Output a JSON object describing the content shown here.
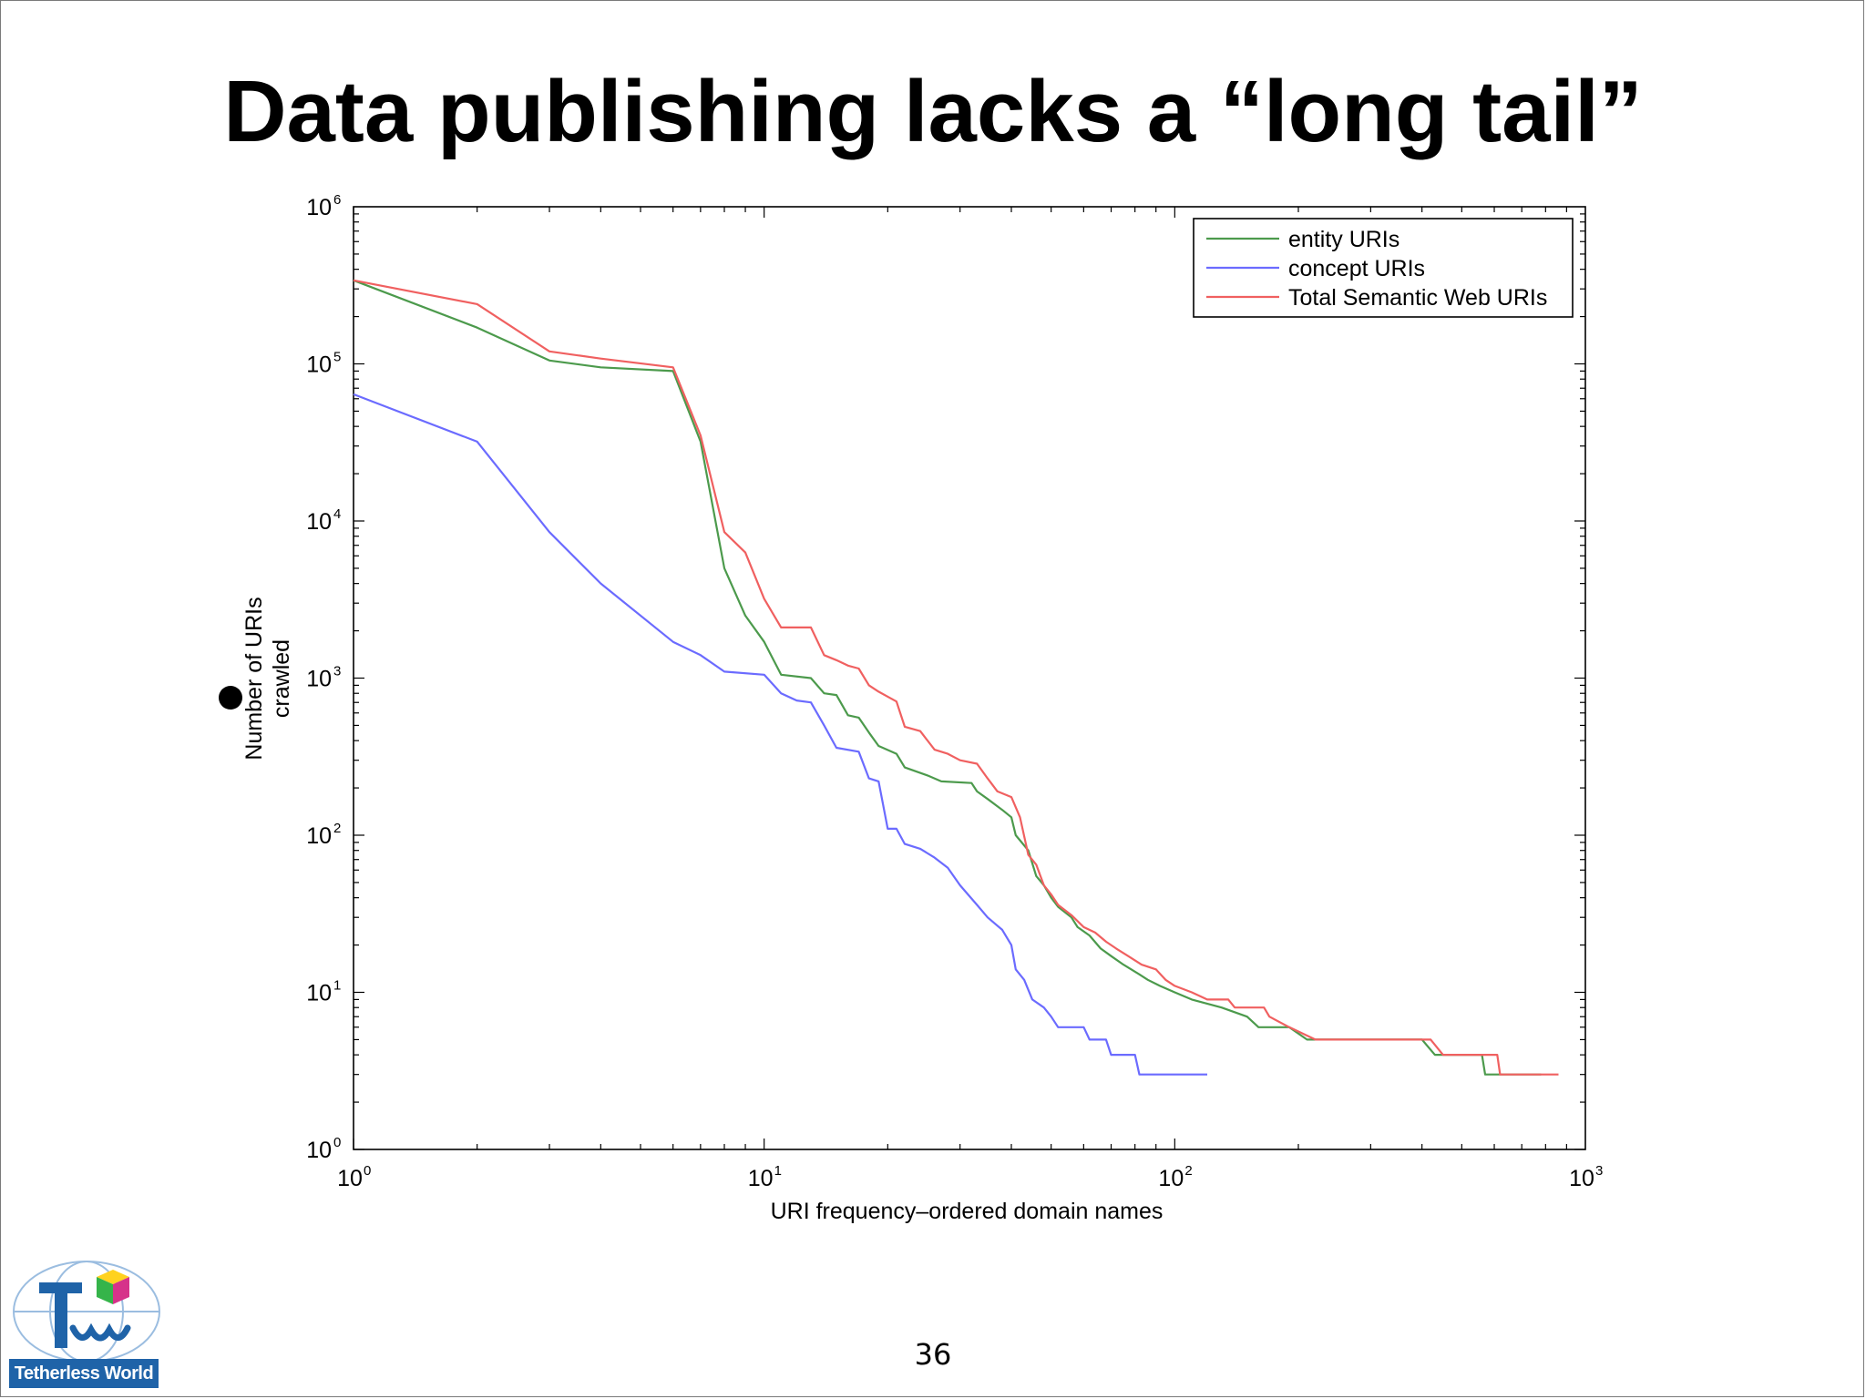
{
  "slide": {
    "title": "Data publishing lacks a “long tail”",
    "page_number": "36",
    "logo_text": "Tetherless World",
    "colors": {
      "logo_blue": "#1f63a8"
    }
  },
  "chart_data": {
    "type": "line",
    "xscale": "log",
    "yscale": "log",
    "xlim": [
      1,
      1000
    ],
    "ylim": [
      1,
      1000000
    ],
    "xlabel": "URI frequency–ordered domain names",
    "ylabel": "Number of URIs crawled",
    "ylabel_lines": [
      "Number of URIs",
      "crawled"
    ],
    "x_ticks": [
      {
        "value": 1,
        "base": "10",
        "exp": "0"
      },
      {
        "value": 10,
        "base": "10",
        "exp": "1"
      },
      {
        "value": 100,
        "base": "10",
        "exp": "2"
      },
      {
        "value": 1000,
        "base": "10",
        "exp": "3"
      }
    ],
    "y_ticks": [
      {
        "value": 1,
        "base": "10",
        "exp": "0"
      },
      {
        "value": 10,
        "base": "10",
        "exp": "1"
      },
      {
        "value": 100,
        "base": "10",
        "exp": "2"
      },
      {
        "value": 1000,
        "base": "10",
        "exp": "3"
      },
      {
        "value": 10000,
        "base": "10",
        "exp": "4"
      },
      {
        "value": 100000,
        "base": "10",
        "exp": "5"
      },
      {
        "value": 1000000,
        "base": "10",
        "exp": "6"
      }
    ],
    "grid": false,
    "legend_position": "top-right",
    "series": [
      {
        "name": "entity URIs",
        "color": "#4c9a4c",
        "points": [
          [
            1,
            340000
          ],
          [
            2,
            170000
          ],
          [
            3,
            105000
          ],
          [
            4,
            95000
          ],
          [
            6,
            90000
          ],
          [
            7,
            32000
          ],
          [
            8,
            5000
          ],
          [
            9,
            2500
          ],
          [
            10,
            1700
          ],
          [
            11,
            1050
          ],
          [
            13,
            1000
          ],
          [
            14,
            800
          ],
          [
            15,
            780
          ],
          [
            16,
            580
          ],
          [
            17,
            560
          ],
          [
            18,
            450
          ],
          [
            19,
            370
          ],
          [
            21,
            330
          ],
          [
            22,
            270
          ],
          [
            25,
            240
          ],
          [
            27,
            220
          ],
          [
            32,
            215
          ],
          [
            33,
            190
          ],
          [
            35,
            170
          ],
          [
            38,
            145
          ],
          [
            40,
            130
          ],
          [
            41,
            100
          ],
          [
            44,
            80
          ],
          [
            46,
            55
          ],
          [
            48,
            48
          ],
          [
            50,
            40
          ],
          [
            52,
            35
          ],
          [
            56,
            30
          ],
          [
            58,
            26
          ],
          [
            62,
            23
          ],
          [
            66,
            19
          ],
          [
            70,
            17
          ],
          [
            75,
            15
          ],
          [
            82,
            13
          ],
          [
            86,
            12
          ],
          [
            92,
            11
          ],
          [
            100,
            10
          ],
          [
            110,
            9
          ],
          [
            130,
            8
          ],
          [
            150,
            7
          ],
          [
            160,
            6
          ],
          [
            190,
            6
          ],
          [
            210,
            5
          ],
          [
            400,
            5
          ],
          [
            430,
            4
          ],
          [
            560,
            4
          ],
          [
            570,
            3
          ],
          [
            780,
            3
          ]
        ]
      },
      {
        "name": "concept URIs",
        "color": "#6b6bff",
        "points": [
          [
            1,
            64000
          ],
          [
            2,
            32000
          ],
          [
            3,
            8500
          ],
          [
            4,
            4000
          ],
          [
            6,
            1700
          ],
          [
            7,
            1400
          ],
          [
            8,
            1100
          ],
          [
            10,
            1050
          ],
          [
            11,
            800
          ],
          [
            12,
            720
          ],
          [
            13,
            700
          ],
          [
            14,
            500
          ],
          [
            15,
            360
          ],
          [
            17,
            340
          ],
          [
            18,
            230
          ],
          [
            19,
            220
          ],
          [
            20,
            110
          ],
          [
            21,
            110
          ],
          [
            22,
            88
          ],
          [
            24,
            82
          ],
          [
            26,
            72
          ],
          [
            28,
            62
          ],
          [
            30,
            48
          ],
          [
            33,
            36
          ],
          [
            35,
            30
          ],
          [
            38,
            25
          ],
          [
            40,
            20
          ],
          [
            41,
            14
          ],
          [
            43,
            12
          ],
          [
            45,
            9
          ],
          [
            48,
            8
          ],
          [
            50,
            7
          ],
          [
            52,
            6
          ],
          [
            60,
            6
          ],
          [
            62,
            5
          ],
          [
            68,
            5
          ],
          [
            70,
            4
          ],
          [
            80,
            4
          ],
          [
            82,
            3
          ],
          [
            120,
            3
          ]
        ]
      },
      {
        "name": "Total Semantic Web URIs",
        "color": "#f06060",
        "points": [
          [
            1,
            340000
          ],
          [
            2,
            240000
          ],
          [
            3,
            120000
          ],
          [
            4,
            108000
          ],
          [
            6,
            95000
          ],
          [
            7,
            35000
          ],
          [
            8,
            8500
          ],
          [
            9,
            6300
          ],
          [
            10,
            3200
          ],
          [
            11,
            2100
          ],
          [
            13,
            2100
          ],
          [
            14,
            1400
          ],
          [
            15,
            1300
          ],
          [
            16,
            1200
          ],
          [
            17,
            1150
          ],
          [
            18,
            900
          ],
          [
            19,
            820
          ],
          [
            21,
            710
          ],
          [
            22,
            490
          ],
          [
            24,
            460
          ],
          [
            26,
            350
          ],
          [
            28,
            330
          ],
          [
            30,
            300
          ],
          [
            33,
            285
          ],
          [
            35,
            230
          ],
          [
            37,
            190
          ],
          [
            40,
            175
          ],
          [
            42,
            130
          ],
          [
            44,
            75
          ],
          [
            46,
            65
          ],
          [
            48,
            48
          ],
          [
            50,
            42
          ],
          [
            52,
            36
          ],
          [
            56,
            31
          ],
          [
            60,
            26
          ],
          [
            64,
            24
          ],
          [
            68,
            21
          ],
          [
            72,
            19
          ],
          [
            77,
            17
          ],
          [
            83,
            15
          ],
          [
            90,
            14
          ],
          [
            95,
            12
          ],
          [
            100,
            11
          ],
          [
            110,
            10
          ],
          [
            120,
            9
          ],
          [
            135,
            9
          ],
          [
            140,
            8
          ],
          [
            165,
            8
          ],
          [
            170,
            7
          ],
          [
            190,
            6
          ],
          [
            220,
            5
          ],
          [
            420,
            5
          ],
          [
            450,
            4
          ],
          [
            610,
            4
          ],
          [
            620,
            3
          ],
          [
            860,
            3
          ]
        ]
      }
    ]
  }
}
